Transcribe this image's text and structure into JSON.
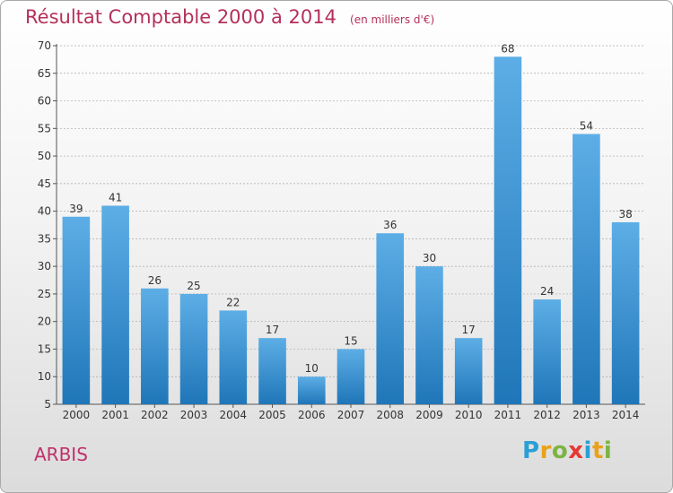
{
  "header": {
    "title": "Résultat Comptable 2000 à 2014",
    "subtitle": "(en milliers d'€)"
  },
  "footer": {
    "commune": "ARBIS",
    "logo_letters": [
      "P",
      "r",
      "o",
      "x",
      "i",
      "t",
      "i"
    ],
    "logo_colors": [
      "#2a9fd6",
      "#e8a21b",
      "#7cb342",
      "#e53935",
      "#2a9fd6",
      "#e8a21b",
      "#7cb342"
    ]
  },
  "colors": {
    "bar_top": "#5daee6",
    "bar_bottom": "#1f76b8",
    "title": "#b5305a",
    "grid": "#a8a8a8"
  },
  "chart_data": {
    "type": "bar",
    "title": "Résultat Comptable 2000 à 2014",
    "subtitle": "(en milliers d'€)",
    "categories": [
      "2000",
      "2001",
      "2002",
      "2003",
      "2004",
      "2005",
      "2006",
      "2007",
      "2008",
      "2009",
      "2010",
      "2011",
      "2012",
      "2013",
      "2014"
    ],
    "values": [
      39,
      41,
      26,
      25,
      22,
      17,
      10,
      15,
      36,
      30,
      17,
      68,
      24,
      54,
      38
    ],
    "ylim": [
      5,
      70
    ],
    "yticks": [
      5,
      10,
      15,
      20,
      25,
      30,
      35,
      40,
      45,
      50,
      55,
      60,
      65,
      70
    ],
    "grid": "horizontal dashed",
    "data_labels": true
  }
}
